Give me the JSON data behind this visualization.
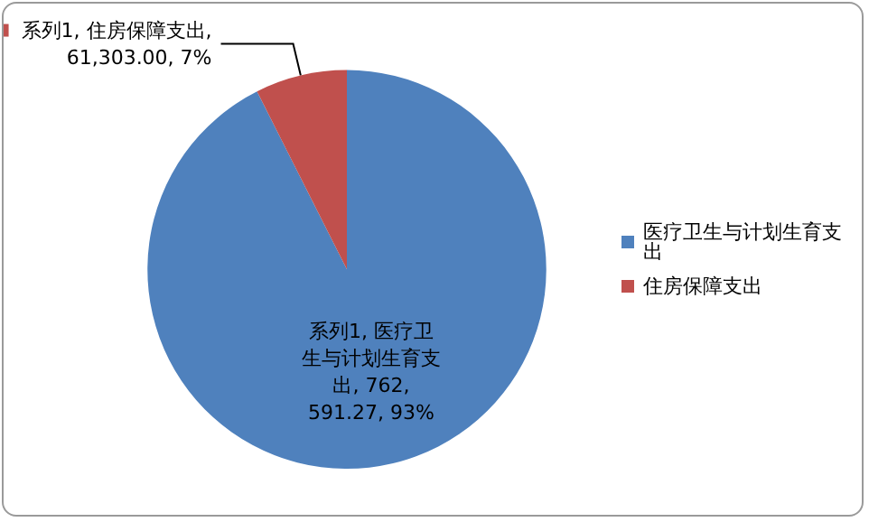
{
  "chart_data": {
    "type": "pie",
    "categories": [
      "医疗卫生与计划生育支出",
      "住房保障支出"
    ],
    "values": [
      762591.27,
      61303.0
    ],
    "colors": [
      "#4f81bd",
      "#c0504d"
    ],
    "value_labels": [
      "系列1, 医疗卫生与计划生育支出, 762,591.27, 93%",
      "系列1, 住房保障支出, 61,303.00, 7%"
    ],
    "legend": "right"
  }
}
